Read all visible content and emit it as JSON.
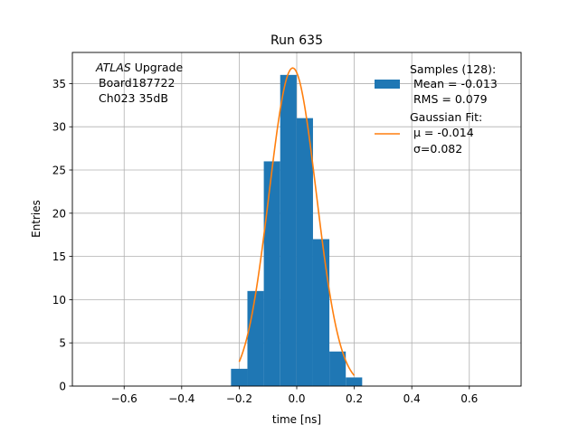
{
  "chart_data": {
    "type": "bar",
    "title": "Run 635",
    "xlabel": "time [ns]",
    "ylabel": "Entries",
    "xlim": [
      -0.78,
      0.78
    ],
    "ylim": [
      0,
      38.6
    ],
    "xticks": [
      -0.6,
      -0.4,
      -0.2,
      0.0,
      0.2,
      0.4,
      0.6
    ],
    "xtick_labels": [
      "−0.6",
      "−0.4",
      "−0.2",
      "0.0",
      "0.2",
      "0.4",
      "0.6"
    ],
    "yticks": [
      0,
      5,
      10,
      15,
      20,
      25,
      30,
      35
    ],
    "ytick_labels": [
      "0",
      "5",
      "10",
      "15",
      "20",
      "25",
      "30",
      "35"
    ],
    "grid": true,
    "annotation": {
      "italic": "ATLAS",
      "line1_rest": " Upgrade",
      "line2": "Board187722",
      "line3": "Ch023 35dB"
    },
    "histogram": {
      "name_lines": [
        "Samples (128):",
        "Mean = -0.013",
        "RMS = 0.079"
      ],
      "color": "#1f77b4",
      "bins": [
        {
          "x0": -0.2285,
          "x1": -0.1715,
          "count": 2
        },
        {
          "x0": -0.1715,
          "x1": -0.1145,
          "count": 11
        },
        {
          "x0": -0.1145,
          "x1": -0.0575,
          "count": 26
        },
        {
          "x0": -0.0575,
          "x1": -0.0005,
          "count": 36
        },
        {
          "x0": -0.0005,
          "x1": 0.0565,
          "count": 31
        },
        {
          "x0": 0.0565,
          "x1": 0.1135,
          "count": 17
        },
        {
          "x0": 0.1135,
          "x1": 0.1705,
          "count": 4
        },
        {
          "x0": 0.1705,
          "x1": 0.2275,
          "count": 1
        }
      ]
    },
    "fit": {
      "name_lines": [
        "Gaussian Fit:",
        "μ = -0.014",
        "σ=0.082"
      ],
      "color": "#ff7f0e",
      "type": "gaussian",
      "amplitude": 36.8,
      "mu": -0.014,
      "sigma": 0.082,
      "x_range": [
        -0.2,
        0.2
      ]
    },
    "legend_position": "upper right"
  }
}
